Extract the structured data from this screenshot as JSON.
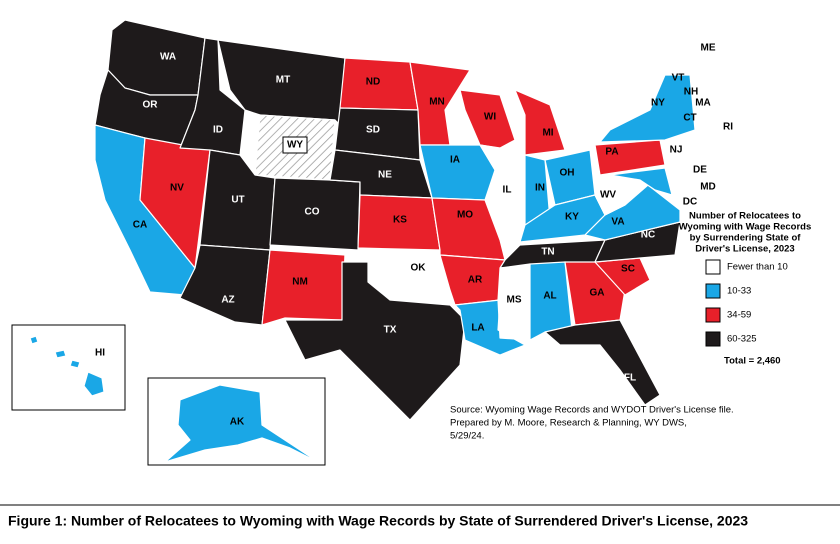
{
  "caption": "Figure 1: Number of Relocatees to Wyoming with Wage Records by State of Surrendered Driver's License, 2023",
  "legend": {
    "title": [
      "Number of Relocatees to",
      "Wyoming with Wage Records",
      "by Surrendering State of",
      "Driver's License, 2023"
    ],
    "items": [
      {
        "label": "Fewer than 10",
        "color": "#ffffff"
      },
      {
        "label": "10-33",
        "color": "#1aa7e6"
      },
      {
        "label": "34-59",
        "color": "#e8202a"
      },
      {
        "label": "60-325",
        "color": "#1e1a1b"
      }
    ],
    "total": "Total = 2,460"
  },
  "source": [
    "Source: Wyoming Wage Records and WYDOT Driver's License file.",
    "Prepared by M. Moore, Research & Planning, WY DWS,",
    "5/29/24."
  ],
  "states": [
    {
      "label": "WA",
      "bin": 3
    },
    {
      "label": "OR",
      "bin": 3
    },
    {
      "label": "CA",
      "bin": 1
    },
    {
      "label": "NV",
      "bin": 2
    },
    {
      "label": "ID",
      "bin": 3
    },
    {
      "label": "MT",
      "bin": 3
    },
    {
      "label": "WY"
    },
    {
      "label": "UT",
      "bin": 3
    },
    {
      "label": "CO",
      "bin": 3
    },
    {
      "label": "AZ",
      "bin": 3
    },
    {
      "label": "NM",
      "bin": 2
    },
    {
      "label": "ND",
      "bin": 2
    },
    {
      "label": "SD",
      "bin": 3
    },
    {
      "label": "NE",
      "bin": 3
    },
    {
      "label": "KS",
      "bin": 2
    },
    {
      "label": "OK",
      "bin": 0
    },
    {
      "label": "TX",
      "bin": 3
    },
    {
      "label": "MN",
      "bin": 2
    },
    {
      "label": "IA",
      "bin": 1
    },
    {
      "label": "MO",
      "bin": 2
    },
    {
      "label": "AR",
      "bin": 2
    },
    {
      "label": "LA",
      "bin": 1
    },
    {
      "label": "WI",
      "bin": 2
    },
    {
      "label": "IL",
      "bin": 0
    },
    {
      "label": "MI",
      "bin": 2
    },
    {
      "label": "IN",
      "bin": 1
    },
    {
      "label": "OH",
      "bin": 1
    },
    {
      "label": "KY",
      "bin": 1
    },
    {
      "label": "TN",
      "bin": 3
    },
    {
      "label": "MS",
      "bin": 0
    },
    {
      "label": "AL",
      "bin": 1
    },
    {
      "label": "GA",
      "bin": 2
    },
    {
      "label": "FL",
      "bin": 3
    },
    {
      "label": "SC",
      "bin": 2
    },
    {
      "label": "NC",
      "bin": 3
    },
    {
      "label": "VA",
      "bin": 1
    },
    {
      "label": "WV",
      "bin": 0
    },
    {
      "label": "PA",
      "bin": 2
    },
    {
      "label": "NY",
      "bin": 1
    },
    {
      "label": "MD",
      "bin": 1
    },
    {
      "label": "NJ",
      "bin": 0
    },
    {
      "label": "DE",
      "bin": 0
    },
    {
      "label": "VT",
      "bin": 0
    },
    {
      "label": "NH",
      "bin": 0
    },
    {
      "label": "ME",
      "bin": 0
    },
    {
      "label": "MA",
      "bin": 0
    },
    {
      "label": "CT",
      "bin": 0
    },
    {
      "label": "RI",
      "bin": 0
    },
    {
      "label": "HI",
      "bin": 1
    },
    {
      "label": "AK",
      "bin": 1
    },
    {
      "label": "DC"
    }
  ]
}
